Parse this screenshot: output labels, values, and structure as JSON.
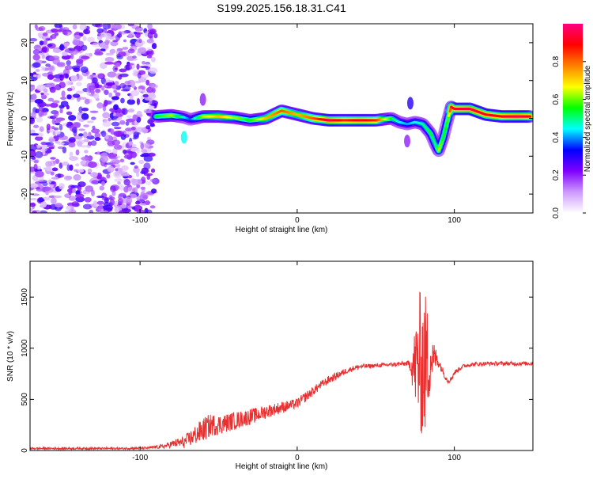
{
  "title": "S199.2025.156.18.31.C41",
  "chart_data": [
    {
      "type": "heatmap",
      "xlabel": "Height of straight line (km)",
      "ylabel": "Frequency (Hz)",
      "xlim": [
        -170,
        150
      ],
      "ylim": [
        -25,
        25
      ],
      "xticks": [
        -100,
        0,
        100
      ],
      "xtick_labels": [
        "-100",
        "0",
        "100"
      ],
      "yticks": [
        -20,
        -10,
        0,
        10,
        20
      ],
      "ytick_labels": [
        "-20",
        "-10",
        "0",
        "10",
        "20"
      ],
      "colorbar": {
        "label": "Normalized spectral amplitude",
        "range": [
          0,
          1
        ],
        "ticks": [
          0,
          0.2,
          0.4,
          0.6,
          0.8
        ],
        "tick_labels": [
          "0.0",
          "0.2",
          "0.4",
          "0.6",
          "0.8"
        ],
        "colormap": [
          "#ffffff",
          "#cc99ff",
          "#7f00ff",
          "#0000ff",
          "#00ffff",
          "#00ff00",
          "#ffff00",
          "#ff8000",
          "#ff0000",
          "#ff0080"
        ]
      },
      "noise_region": {
        "x": [
          -170,
          -90
        ],
        "intensity": 0.25
      },
      "ridge": {
        "x": [
          -90,
          -80,
          -72,
          -68,
          -60,
          -50,
          -40,
          -30,
          -20,
          -10,
          0,
          10,
          20,
          30,
          40,
          50,
          60,
          65,
          70,
          75,
          80,
          85,
          88,
          90,
          93,
          96,
          98,
          100,
          110,
          120,
          130,
          140,
          148
        ],
        "freq": [
          0.5,
          0.8,
          0.3,
          -0.3,
          0.5,
          0.5,
          0.2,
          -0.5,
          0.0,
          2.0,
          1.0,
          0.0,
          -0.5,
          -0.5,
          -0.5,
          -0.5,
          0.0,
          -1.0,
          -1.5,
          -1.0,
          -1.5,
          -4.0,
          -7.0,
          -8.5,
          -5.0,
          0.0,
          3.0,
          2.5,
          2.5,
          1.0,
          0.5,
          0.5,
          0.5
        ],
        "amplitude": [
          0.5,
          0.6,
          0.4,
          0.3,
          0.6,
          0.7,
          0.6,
          0.5,
          0.7,
          0.8,
          0.7,
          0.8,
          0.95,
          0.85,
          0.9,
          0.85,
          0.5,
          0.4,
          0.35,
          0.4,
          0.45,
          0.5,
          0.45,
          0.6,
          0.5,
          0.55,
          0.95,
          0.9,
          0.95,
          0.9,
          0.9,
          0.95,
          0.9
        ]
      },
      "artifacts": [
        {
          "x": -72,
          "freq": -5,
          "amplitude": 0.45
        },
        {
          "x": -60,
          "freq": 5,
          "amplitude": 0.2
        },
        {
          "x": 72,
          "freq": 4,
          "amplitude": 0.3
        },
        {
          "x": 70,
          "freq": -6,
          "amplitude": 0.2
        }
      ]
    },
    {
      "type": "line",
      "xlabel": "Height of straight line (km)",
      "ylabel": "SNR (10 * v/v)",
      "xlim": [
        -170,
        150
      ],
      "ylim": [
        0,
        1850
      ],
      "xticks": [
        -100,
        0,
        100
      ],
      "xtick_labels": [
        "-100",
        "0",
        "100"
      ],
      "yticks": [
        0,
        500,
        1000,
        1500
      ],
      "ytick_labels": [
        "0",
        "500",
        "1000",
        "1500"
      ],
      "color": "#e83030",
      "series": [
        {
          "x": [
            -170,
            -150,
            -130,
            -110,
            -95,
            -85,
            -78,
            -72,
            -68,
            -62,
            -58,
            -55,
            -50,
            -45,
            -40,
            -35,
            -30,
            -25,
            -20,
            -15,
            -10,
            -5,
            0,
            5,
            10,
            15,
            20,
            25,
            30,
            35,
            40,
            50,
            60,
            70,
            72,
            74,
            76,
            78,
            80,
            82,
            84,
            86,
            88,
            90,
            92,
            94,
            96,
            98,
            100,
            105,
            110,
            120,
            130,
            140,
            150
          ],
          "y": [
            20,
            20,
            20,
            20,
            25,
            40,
            70,
            80,
            120,
            180,
            220,
            250,
            250,
            270,
            290,
            310,
            330,
            350,
            380,
            400,
            420,
            440,
            460,
            520,
            580,
            640,
            690,
            730,
            770,
            800,
            820,
            830,
            840,
            850,
            840,
            820,
            840,
            860,
            840,
            840,
            880,
            900,
            900,
            870,
            800,
            730,
            680,
            700,
            760,
            820,
            840,
            850,
            850,
            850,
            850
          ],
          "jitter": [
            10,
            10,
            10,
            10,
            12,
            20,
            40,
            60,
            80,
            110,
            120,
            110,
            100,
            90,
            90,
            80,
            80,
            70,
            70,
            60,
            60,
            50,
            50,
            50,
            45,
            40,
            40,
            35,
            30,
            25,
            25,
            20,
            20,
            25,
            60,
            300,
            500,
            700,
            750,
            700,
            400,
            200,
            120,
            60,
            40,
            30,
            25,
            25,
            25,
            20,
            20,
            20,
            20,
            20,
            20
          ]
        }
      ]
    }
  ]
}
